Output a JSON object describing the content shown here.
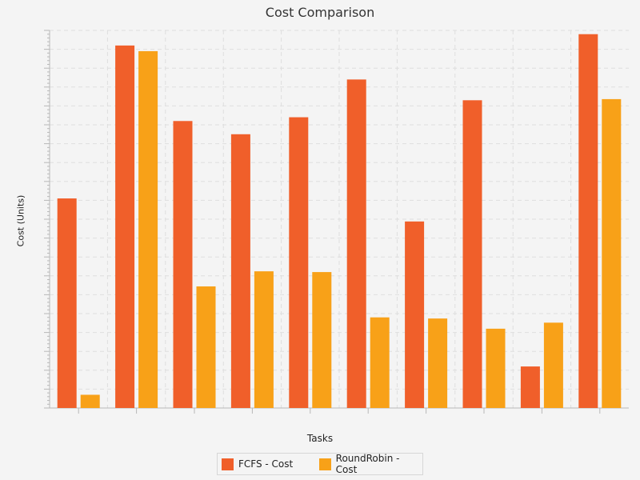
{
  "chart_data": {
    "type": "bar",
    "title": "Cost Comparison",
    "xlabel": "Tasks",
    "ylabel": "Cost (Units)",
    "categories": [
      "",
      "",
      "",
      "",
      "",
      "",
      "",
      "",
      "",
      ""
    ],
    "series": [
      {
        "name": "FCFS - Cost",
        "color": "#f05f2a",
        "values": [
          55.5,
          96.0,
          76.0,
          72.5,
          77.0,
          87.0,
          49.4,
          81.5,
          11.0,
          99.0
        ]
      },
      {
        "name": "RoundRobin - Cost",
        "color": "#f8a118",
        "values": [
          3.5,
          94.5,
          32.2,
          36.2,
          36.0,
          24.0,
          23.7,
          21.0,
          22.6,
          81.8
        ]
      }
    ],
    "ylim": [
      0,
      100
    ],
    "grid": true,
    "legend_position": "bottom"
  }
}
